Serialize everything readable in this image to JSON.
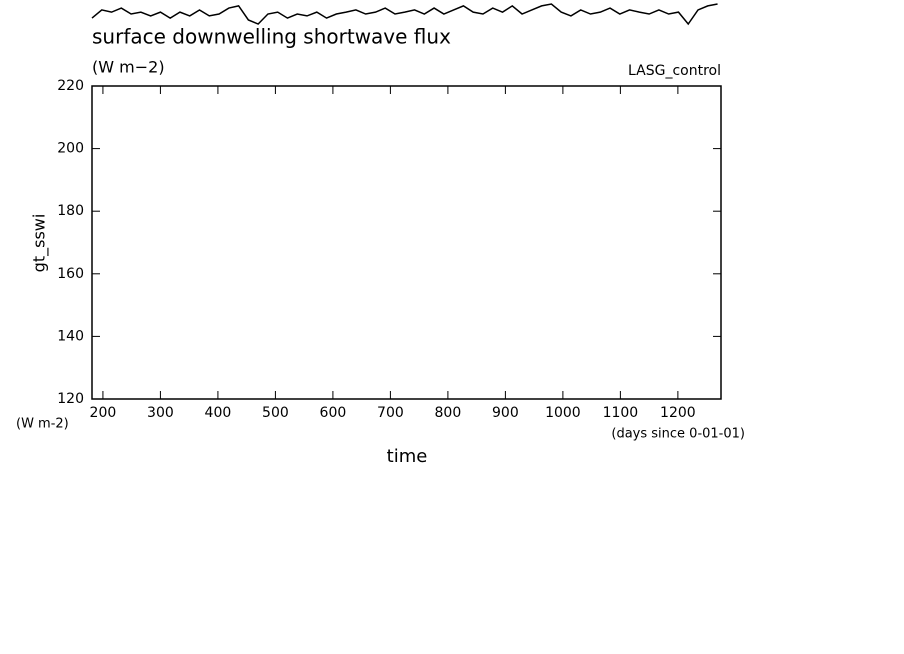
{
  "chart_data": {
    "type": "line",
    "title": "surface downwelling shortwave flux",
    "subtitle": "(W m−2)",
    "annotation": "LASG_control",
    "ylabel": "gt_sswi",
    "yunit": "(W m-2)",
    "xlabel": "time",
    "xunit": "(days since 0-01-01)",
    "xlim": [
      181,
      1275
    ],
    "ylim": [
      120,
      220
    ],
    "xticks": [
      200,
      300,
      400,
      500,
      600,
      700,
      800,
      900,
      1000,
      1100,
      1200
    ],
    "yticks": [
      120,
      140,
      160,
      180,
      200,
      220
    ],
    "color": "#000000",
    "x": [
      181,
      198,
      215,
      232,
      249,
      266,
      283,
      300,
      317,
      334,
      351,
      368,
      385,
      402,
      419,
      436,
      453,
      470,
      487,
      504,
      521,
      538,
      555,
      572,
      589,
      606,
      623,
      640,
      657,
      674,
      691,
      708,
      725,
      742,
      759,
      776,
      793,
      810,
      827,
      844,
      861,
      878,
      895,
      912,
      929,
      946,
      963,
      980,
      997,
      1014,
      1031,
      1048,
      1065,
      1082,
      1099,
      1116,
      1133,
      1150,
      1167,
      1184,
      1201,
      1218,
      1235,
      1252,
      1269
    ],
    "values": [
      241.7,
      244.3,
      243.6,
      244.9,
      243.0,
      243.6,
      242.4,
      243.6,
      241.7,
      243.6,
      242.4,
      244.3,
      242.4,
      243.0,
      244.9,
      245.6,
      241.1,
      239.8,
      243.0,
      243.6,
      241.7,
      243.0,
      242.4,
      243.6,
      241.7,
      243.0,
      243.6,
      244.3,
      243.0,
      243.6,
      244.9,
      243.0,
      243.6,
      244.3,
      243.0,
      244.9,
      243.0,
      244.3,
      245.6,
      243.6,
      243.0,
      244.9,
      243.6,
      245.6,
      243.0,
      244.3,
      245.6,
      246.2,
      243.6,
      242.4,
      244.3,
      243.0,
      243.6,
      244.9,
      243.0,
      244.3,
      243.6,
      243.0,
      244.3,
      243.0,
      243.6,
      239.8,
      244.3,
      245.6,
      246.2
    ]
  }
}
